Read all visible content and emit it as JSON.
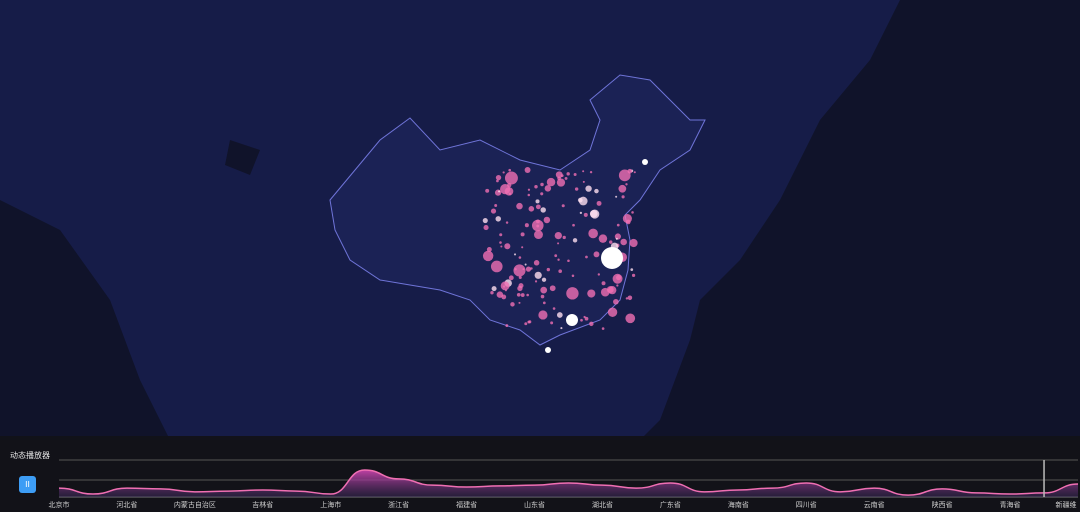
{
  "player": {
    "title": "动态播放器",
    "pause_icon": "pause-icon",
    "pause_label": "II"
  },
  "colors": {
    "map_bg": "#161c48",
    "land": "#10132a",
    "border": "#6f74d8",
    "dot": "#f06fb3",
    "area_top": "#d246b4",
    "line": "#f06fb3",
    "button": "#3d9df5"
  },
  "chart_data": {
    "type": "area",
    "tick_labels": [
      "北京市",
      "河北省",
      "内蒙古自治区",
      "吉林省",
      "上海市",
      "浙江省",
      "福建省",
      "山东省",
      "湖北省",
      "广东省",
      "海南省",
      "四川省",
      "云南省",
      "陕西省",
      "青海省",
      "新疆维"
    ],
    "values": [
      24,
      8,
      24,
      22,
      14,
      16,
      19,
      16,
      8,
      73,
      49,
      32,
      27,
      30,
      32,
      38,
      32,
      24,
      38,
      14,
      19,
      24,
      38,
      14,
      24,
      5,
      22,
      11,
      8,
      11,
      35
    ],
    "current_index": 29,
    "grid": true
  }
}
